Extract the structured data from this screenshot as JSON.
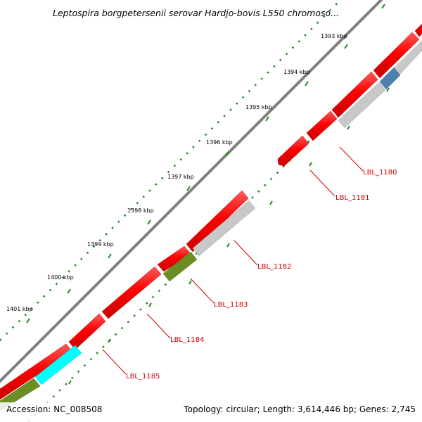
{
  "title": "Leptospira borgpetersenii serovar Hardjo-bovis L550 chromoso...",
  "footer": {
    "accession": "Accession: NC_008508",
    "summary": "Topology: circular; Length: 3,614,446 bp; Genes: 2,745"
  },
  "ticks": [
    "1393 kbp",
    "1394 kbp",
    "1395 kbp",
    "1396 kbp",
    "1397 kbp",
    "1398 kbp",
    "1399 kbp",
    "1400 kbp",
    "1401 kbp"
  ],
  "gene_labels": [
    "LBL_1180",
    "LBL_1181",
    "LBL_1182",
    "LBL_1183",
    "LBL_1184",
    "LBL_1185"
  ],
  "colors": {
    "backbone": "#808080",
    "cds": "#ff0000",
    "cds_edge": "#c00000",
    "gray_feature": "#c8c8c8",
    "blue_feature": "#5080b0",
    "green_feature": "#6b8e23",
    "cyan_feature": "#00ffff",
    "tick": "#1a8a1a",
    "label": "#cc0000"
  }
}
